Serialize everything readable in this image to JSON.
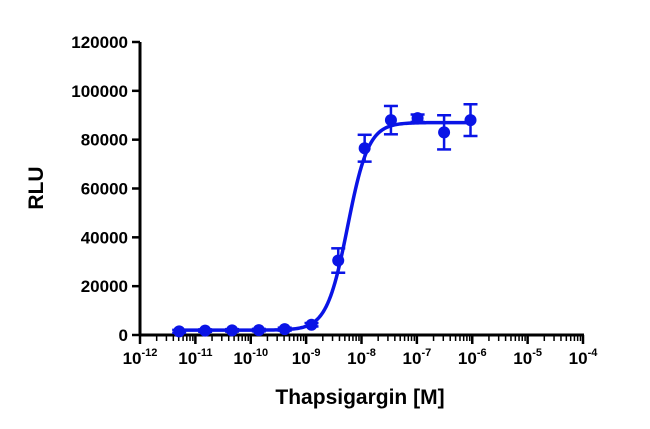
{
  "chart_data": {
    "type": "scatter",
    "title": "",
    "xlabel": "Thapsigargin [M]",
    "ylabel": "RLU",
    "x_scale": "log",
    "xlim": [
      1e-12,
      0.0001
    ],
    "ylim": [
      0,
      120000
    ],
    "grid": false,
    "legend": "none",
    "x_ticks": [
      {
        "base": "10",
        "exp": "-12"
      },
      {
        "base": "10",
        "exp": "-11"
      },
      {
        "base": "10",
        "exp": "-10"
      },
      {
        "base": "10",
        "exp": "-9"
      },
      {
        "base": "10",
        "exp": "-8"
      },
      {
        "base": "10",
        "exp": "-7"
      },
      {
        "base": "10",
        "exp": "-6"
      },
      {
        "base": "10",
        "exp": "-5"
      },
      {
        "base": "10",
        "exp": "-4"
      }
    ],
    "y_ticks": [
      "0",
      "20000",
      "40000",
      "60000",
      "80000",
      "100000",
      "120000"
    ],
    "series": [
      {
        "color": "#0a14e6",
        "points": [
          {
            "x": 5.1e-12,
            "y": 1500,
            "err": 600
          },
          {
            "x": 1.5e-11,
            "y": 1800,
            "err": 500
          },
          {
            "x": 4.6e-11,
            "y": 1900,
            "err": 500
          },
          {
            "x": 1.4e-10,
            "y": 2000,
            "err": 500
          },
          {
            "x": 4.1e-10,
            "y": 2400,
            "err": 600
          },
          {
            "x": 1.25e-09,
            "y": 4200,
            "err": 700
          },
          {
            "x": 3.8e-09,
            "y": 30500,
            "err": 5000
          },
          {
            "x": 1.14e-08,
            "y": 76500,
            "err": 5500
          },
          {
            "x": 3.4e-08,
            "y": 88000,
            "err": 5800
          },
          {
            "x": 1.03e-07,
            "y": 88800,
            "err": 1500
          },
          {
            "x": 3.1e-07,
            "y": 83000,
            "err": 7000
          },
          {
            "x": 9.3e-07,
            "y": 88000,
            "err": 6500
          }
        ],
        "fit": {
          "bottom": 2000,
          "top": 87000,
          "log_ec50": -8.25,
          "hill": 2.3
        }
      }
    ]
  }
}
